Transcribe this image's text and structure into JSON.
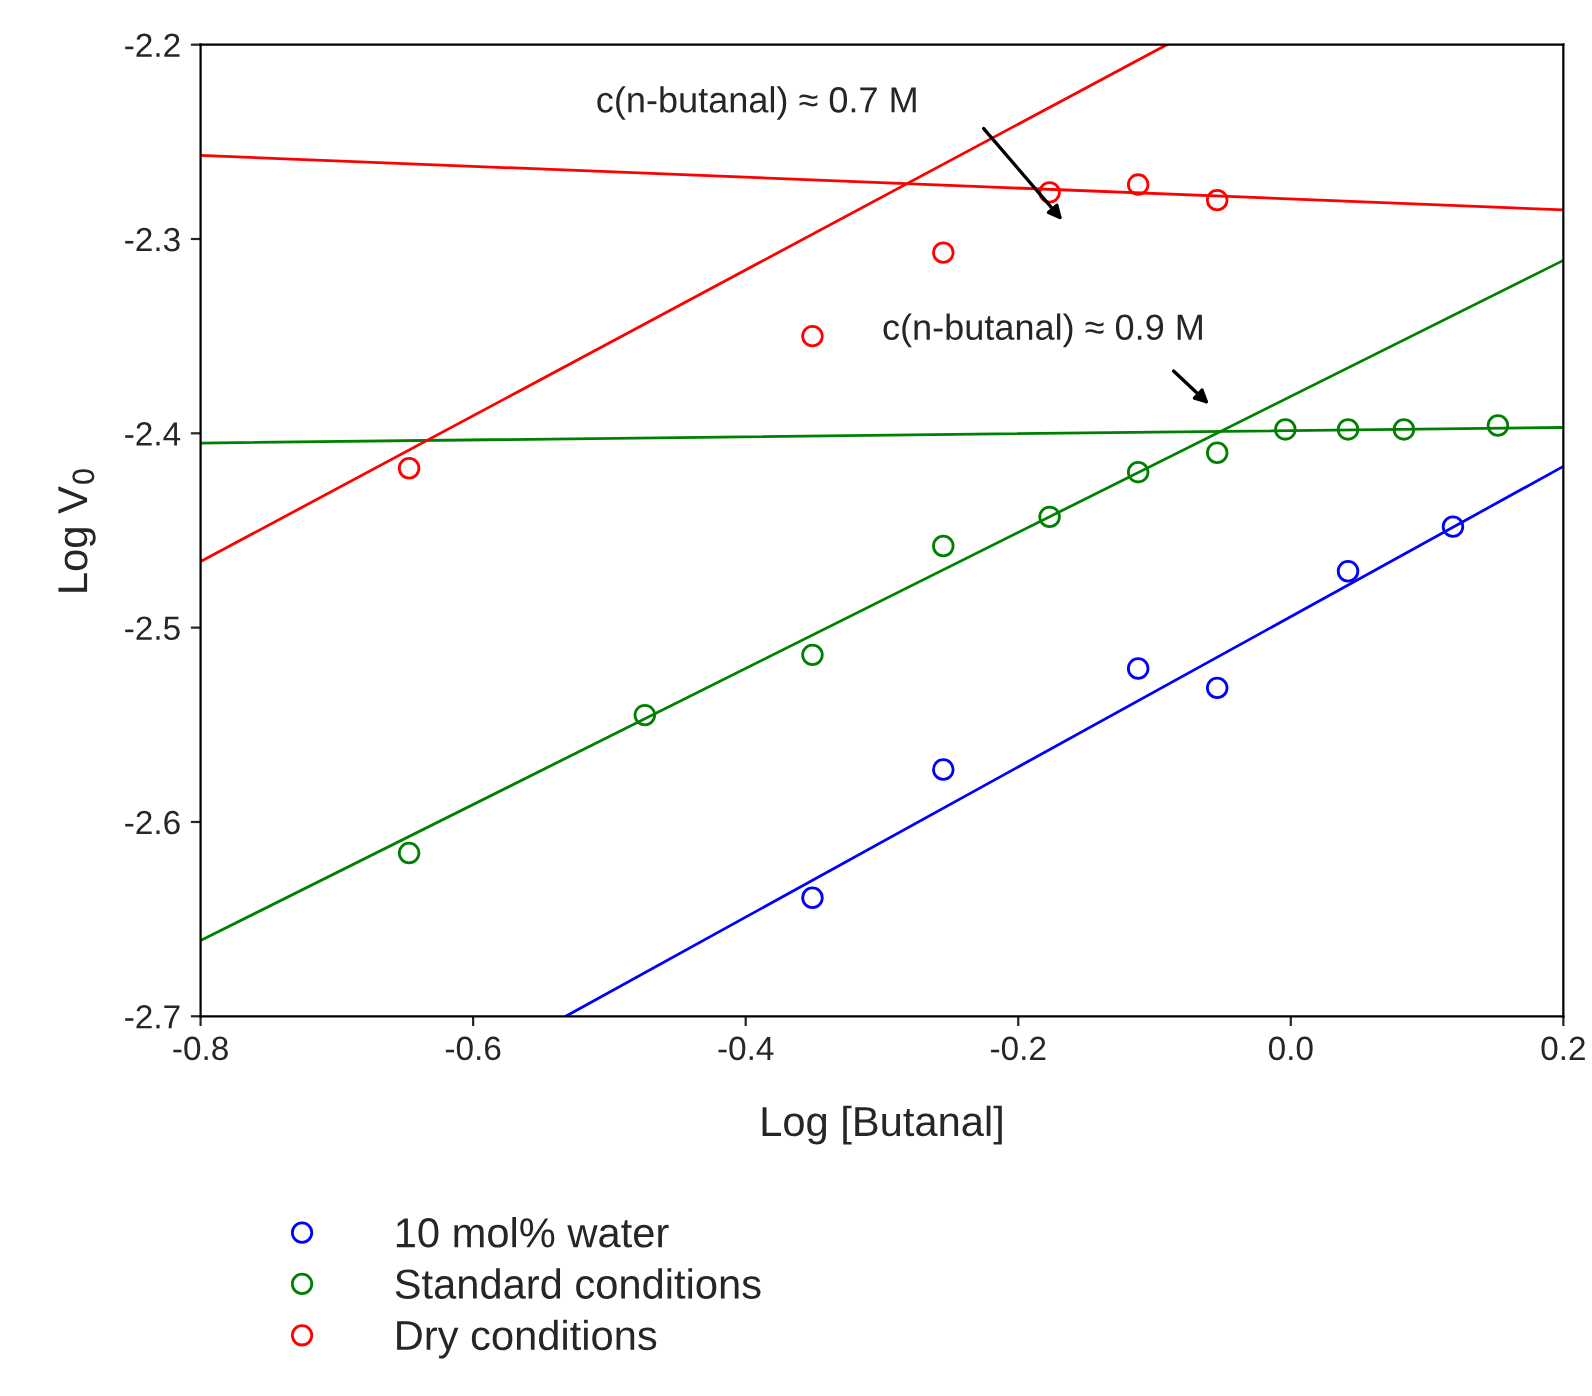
{
  "chart_data": {
    "type": "scatter",
    "xlabel": "Log [Butanal]",
    "ylabel": "Log V$_{0}$",
    "xlim": [
      -0.8,
      0.2
    ],
    "ylim": [
      -2.7,
      -2.2
    ],
    "xticks": [
      -0.8,
      -0.6,
      -0.4,
      -0.2,
      {
        "value": 0.0,
        "label": "0.0"
      },
      0.2
    ],
    "yticks": [
      -2.7,
      -2.6,
      -2.5,
      -2.4,
      -2.3,
      -2.2
    ],
    "grid": false,
    "legend": "bottom",
    "marker": "circle",
    "series": [
      {
        "name": "10 mol% water",
        "color": "#0000ff",
        "x": [
          -0.351,
          -0.255,
          -0.112,
          -0.054,
          0.042,
          0.119
        ],
        "values": [
          -2.639,
          -2.573,
          -2.521,
          -2.531,
          -2.471,
          -2.448
        ]
      },
      {
        "name": "Standard conditions",
        "color": "#008000",
        "x": [
          -0.647,
          -0.474,
          -0.351,
          -0.255,
          -0.177,
          -0.112,
          -0.054,
          -0.004,
          0.042,
          0.083,
          0.152
        ],
        "values": [
          -2.616,
          -2.545,
          -2.514,
          -2.458,
          -2.443,
          -2.42,
          -2.41,
          -2.398,
          -2.398,
          -2.398,
          -2.396
        ]
      },
      {
        "name": "Dry conditions",
        "color": "#ff0000",
        "x": [
          -0.647,
          -0.351,
          -0.255,
          -0.177,
          -0.112,
          -0.054
        ],
        "values": [
          -2.418,
          -2.35,
          -2.307,
          -2.276,
          -2.272,
          -2.28
        ]
      },
      {
        "type": "line",
        "marker": "none",
        "color": "#0000ff",
        "x": [
          -0.532,
          0.2
        ],
        "values": [
          -2.7,
          -2.417
        ]
      },
      {
        "type": "line",
        "marker": "none",
        "color": "#008000",
        "x": [
          -0.8,
          0.2
        ],
        "values": [
          -2.661,
          -2.311
        ]
      },
      {
        "type": "line",
        "marker": "none",
        "color": "#008000",
        "x": [
          -0.8,
          0.2
        ],
        "values": [
          -2.405,
          -2.397
        ]
      },
      {
        "type": "line",
        "marker": "none",
        "color": "#ff0000",
        "x": [
          -0.8,
          -0.091
        ],
        "values": [
          -2.466,
          -2.2
        ]
      },
      {
        "type": "line",
        "marker": "none",
        "color": "#ff0000",
        "x": [
          -0.8,
          0.2
        ],
        "values": [
          -2.257,
          -2.285
        ]
      }
    ],
    "annotations": [
      "c(n-butanal) ≈ 0.7 M",
      "c(n-butanal) ≈ 0.9 M"
    ]
  }
}
